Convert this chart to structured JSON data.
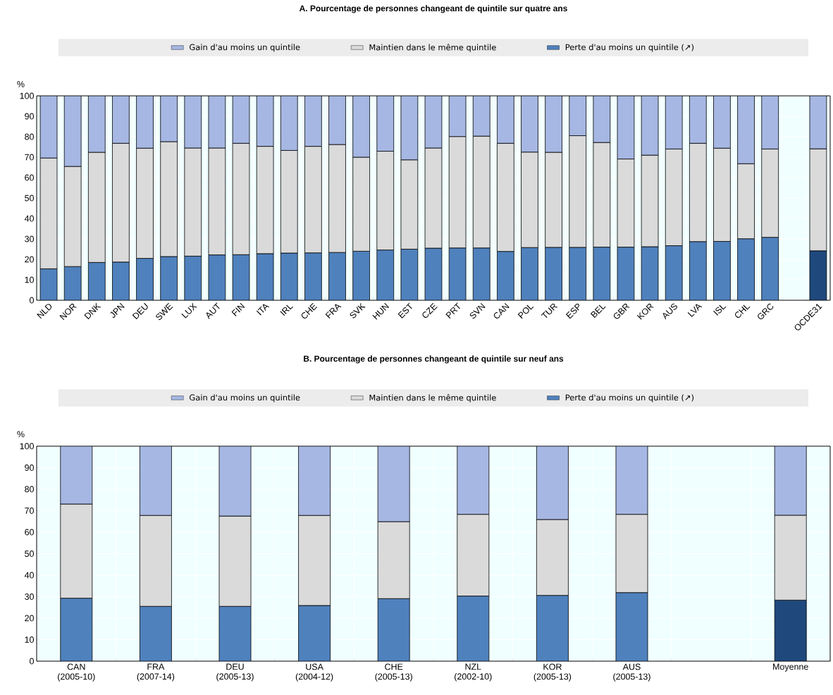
{
  "chart_data": [
    {
      "type": "bar",
      "title": "A. Pourcentage de personnes changeant de quintile sur quatre ans",
      "ylabel": "%",
      "stacked": true,
      "grid": true,
      "legend": "top",
      "ylim": [
        0,
        100
      ],
      "yticks": [
        0,
        10,
        20,
        30,
        40,
        50,
        60,
        70,
        80,
        90,
        100
      ],
      "categories": [
        "NLD",
        "NOR",
        "DNK",
        "JPN",
        "DEU",
        "SWE",
        "LUX",
        "AUT",
        "FIN",
        "ITA",
        "IRL",
        "CHE",
        "FRA",
        "SVK",
        "HUN",
        "EST",
        "CZE",
        "PRT",
        "SVN",
        "CAN",
        "POL",
        "TUR",
        "ESP",
        "BEL",
        "GBR",
        "KOR",
        "AUS",
        "LVA",
        "ISL",
        "CHL",
        "GRC",
        null,
        "OCDE31"
      ],
      "series": [
        {
          "name": "Perte d'au moins un quintile (↗)",
          "color": "#4f81bd",
          "values": [
            15.4,
            16.5,
            18.5,
            18.7,
            20.5,
            21.4,
            21.6,
            22.2,
            22.3,
            22.8,
            23.1,
            23.2,
            23.4,
            24.0,
            24.6,
            25.0,
            25.5,
            25.6,
            25.6,
            23.9,
            25.8,
            25.9,
            25.9,
            26.0,
            26.0,
            26.2,
            26.7,
            28.7,
            28.8,
            30.1,
            30.8,
            null,
            24.2
          ],
          "colors": [
            "#4f81bd",
            "#4f81bd",
            "#4f81bd",
            "#4f81bd",
            "#4f81bd",
            "#4f81bd",
            "#4f81bd",
            "#4f81bd",
            "#4f81bd",
            "#4f81bd",
            "#4f81bd",
            "#4f81bd",
            "#4f81bd",
            "#4f81bd",
            "#4f81bd",
            "#4f81bd",
            "#4f81bd",
            "#4f81bd",
            "#4f81bd",
            "#4f81bd",
            "#4f81bd",
            "#4f81bd",
            "#4f81bd",
            "#4f81bd",
            "#4f81bd",
            "#4f81bd",
            "#4f81bd",
            "#4f81bd",
            "#4f81bd",
            "#4f81bd",
            "#4f81bd",
            null,
            "#1f497d"
          ]
        },
        {
          "name": "Maintien dans le même quintile",
          "color": "#dadada",
          "values": [
            54.2,
            49.0,
            53.9,
            58.1,
            53.9,
            56.2,
            52.9,
            52.3,
            54.5,
            52.5,
            50.2,
            52.1,
            52.8,
            46.0,
            48.3,
            43.7,
            49.0,
            54.5,
            54.7,
            52.9,
            46.7,
            46.5,
            54.6,
            51.2,
            43.1,
            44.8,
            47.3,
            48.1,
            45.6,
            36.7,
            43.2,
            null,
            49.9
          ]
        },
        {
          "name": "Gain d'au moins un quintile",
          "color": "#a6b7e3",
          "values": [
            30.4,
            34.5,
            27.6,
            23.2,
            25.6,
            22.4,
            25.5,
            25.5,
            23.2,
            24.7,
            26.7,
            24.7,
            23.8,
            30.0,
            27.1,
            31.3,
            25.5,
            19.9,
            19.7,
            23.2,
            27.5,
            27.6,
            19.5,
            22.8,
            30.9,
            29.0,
            26.0,
            23.2,
            25.6,
            33.2,
            26.0,
            null,
            25.9
          ]
        }
      ]
    },
    {
      "type": "bar",
      "title": "B. Pourcentage de personnes changeant de quintile sur neuf ans",
      "ylabel": "%",
      "stacked": true,
      "grid": true,
      "legend": "top",
      "ylim": [
        0,
        100
      ],
      "yticks": [
        0,
        10,
        20,
        30,
        40,
        50,
        60,
        70,
        80,
        90,
        100
      ],
      "categories": [
        "CAN (2005-10)",
        "FRA (2007-14)",
        "DEU (2005-13)",
        "USA (2004-12)",
        "CHE (2005-13)",
        "NZL (2002-10)",
        "KOR (2005-13)",
        "AUS (2005-13)",
        null,
        "Moyenne"
      ],
      "series": [
        {
          "name": "Perte d'au moins un quintile (↗)",
          "color": "#4f81bd",
          "values": [
            29.3,
            25.5,
            25.5,
            25.9,
            29.1,
            30.3,
            30.6,
            31.9,
            null,
            28.4
          ],
          "colors": [
            "#4f81bd",
            "#4f81bd",
            "#4f81bd",
            "#4f81bd",
            "#4f81bd",
            "#4f81bd",
            "#4f81bd",
            "#4f81bd",
            null,
            "#1f497d"
          ]
        },
        {
          "name": "Maintien dans le même quintile",
          "color": "#dadada",
          "values": [
            43.8,
            42.3,
            42.0,
            41.9,
            35.8,
            38.0,
            35.3,
            36.4,
            null,
            39.5
          ]
        },
        {
          "name": "Gain d'au moins un quintile",
          "color": "#a6b7e3",
          "values": [
            26.9,
            32.2,
            32.5,
            32.2,
            35.1,
            31.7,
            34.1,
            31.7,
            null,
            32.1
          ]
        }
      ]
    }
  ]
}
